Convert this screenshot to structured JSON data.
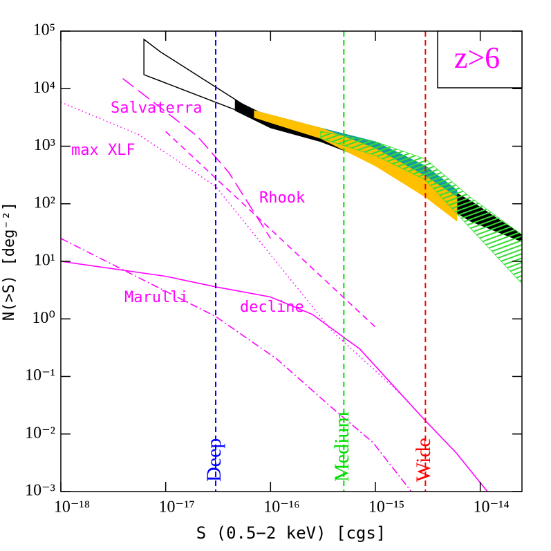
{
  "chart_data": {
    "type": "line",
    "xlabel": "S (0.5−2 keV) [cgs]",
    "ylabel": "N(>S) [deg⁻²]",
    "annotation": "z>6",
    "annotation_color": "#ff00ff",
    "xlog": true,
    "ylog": true,
    "xlim": [
      1e-18,
      2.5e-14
    ],
    "ylim": [
      0.001,
      100000
    ],
    "xticks": [
      {
        "value": 1e-18,
        "label": "10⁻¹⁸"
      },
      {
        "value": 1e-17,
        "label": "10⁻¹⁷"
      },
      {
        "value": 1e-16,
        "label": "10⁻¹⁶"
      },
      {
        "value": 1e-15,
        "label": "10⁻¹⁵"
      },
      {
        "value": 1e-14,
        "label": "10⁻¹⁴"
      }
    ],
    "yticks": [
      {
        "value": 0.001,
        "label": "10⁻³"
      },
      {
        "value": 0.01,
        "label": "10⁻²"
      },
      {
        "value": 0.1,
        "label": "10⁻¹"
      },
      {
        "value": 1,
        "label": "10⁰"
      },
      {
        "value": 10,
        "label": "10¹"
      },
      {
        "value": 100,
        "label": "10²"
      },
      {
        "value": 1000,
        "label": "10³"
      },
      {
        "value": 10000,
        "label": "10⁴"
      },
      {
        "value": 100000,
        "label": "10⁵"
      }
    ],
    "bands": [
      {
        "color": "#000000",
        "fill": false,
        "x": [
          6.2e-18,
          8.9e-18,
          6.7e-17
        ],
        "upper": [
          72000,
          43600,
          4200
        ],
        "lower": [
          17500,
          13600,
          3300
        ]
      },
      {
        "color": "#000000",
        "fill": true,
        "x": [
          4.6e-17,
          1e-16,
          3e-16,
          1e-15,
          3e-15,
          8e-15,
          2.5e-14
        ],
        "upper": [
          6300,
          3150,
          1810,
          910,
          300,
          114,
          29
        ],
        "lower": [
          4160,
          2080,
          1200,
          520,
          150,
          50,
          22
        ]
      },
      {
        "color": "#1a9a9a",
        "fill": true,
        "x": [
          7e-17,
          3e-16,
          1e-15,
          3e-15,
          6e-15
        ],
        "upper": [
          4160,
          2080,
          1200,
          455,
          173
        ],
        "lower": [
          3150,
          1580,
          690,
          173,
          86
        ]
      },
      {
        "color": "#ffc000",
        "fill": true,
        "x": [
          7e-17,
          3e-16,
          1e-15,
          3e-15,
          6e-15
        ],
        "upper": [
          4160,
          2080,
          910,
          300,
          131
        ],
        "lower": [
          3150,
          1370,
          455,
          131,
          50
        ]
      },
      {
        "color": "#33dd33",
        "fill": true,
        "hatch": true,
        "x": [
          3e-16,
          1e-15,
          3e-15,
          8e-15,
          2.5e-14
        ],
        "upper": [
          1810,
          1200,
          600,
          131,
          29
        ],
        "lower": [
          1370,
          690,
          260,
          38,
          4.1
        ]
      }
    ],
    "series": [
      {
        "name": "Salvaterra",
        "color": "#ff00ff",
        "dash": "long-dash",
        "x": [
          3.9e-18,
          2e-17,
          4e-17,
          1e-16
        ],
        "values": [
          15000,
          1500,
          350,
          25
        ]
      },
      {
        "name": "max XLF",
        "color": "#ff00ff",
        "dash": "dotted",
        "x": [
          1e-18,
          5.5e-18,
          3e-17,
          1.15e-16,
          3.9e-16,
          1.76e-15
        ],
        "values": [
          5800,
          1600,
          200,
          9.5,
          0.6,
          0.049
        ]
      },
      {
        "name": "Rhook",
        "color": "#ff00ff",
        "dash": "dash",
        "x": [
          1e-17,
          1e-15
        ],
        "values": [
          1800,
          0.72
        ]
      },
      {
        "name": "Marulli",
        "color": "#ff00ff",
        "dash": "dash-dot",
        "x": [
          1e-18,
          3e-17,
          1.15e-16,
          3.9e-16,
          9.5e-16,
          2.2e-15
        ],
        "values": [
          25,
          1.1,
          0.2,
          0.028,
          0.0071,
          0.001
        ]
      },
      {
        "name": "decline",
        "color": "#ff00ff",
        "dash": "solid",
        "x": [
          1e-18,
          1e-17,
          3e-17,
          1e-16,
          2.5e-16,
          7.1e-16,
          1.76e-15,
          3e-15,
          5.9e-15,
          1.17e-14
        ],
        "values": [
          10,
          5.5,
          3.6,
          2.4,
          1.2,
          0.3,
          0.049,
          0.017,
          0.0047,
          0.001
        ]
      }
    ],
    "vlines": [
      {
        "label": "Deep",
        "color": "#0000ff",
        "x": 3e-17
      },
      {
        "label": "Medium",
        "color": "#00dd00",
        "x": 5e-16
      },
      {
        "label": "Wide",
        "color": "#ff0000",
        "x": 3e-15
      }
    ]
  }
}
